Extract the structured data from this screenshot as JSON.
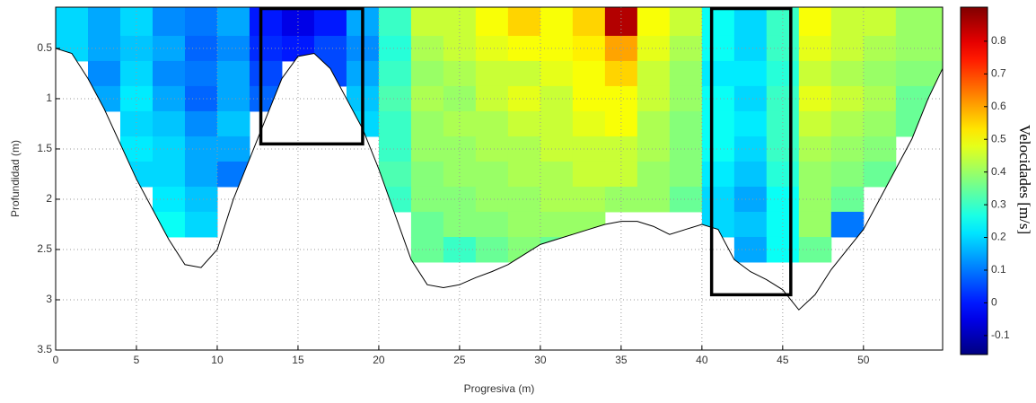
{
  "chart_data": {
    "type": "heatmap",
    "xlabel": "Progresiva (m)",
    "ylabel": "Profundidad (m)",
    "colorbar_label": "Velocidades [m/s]",
    "xlim": [
      0,
      54.9
    ],
    "ylim": [
      0.09,
      3.5
    ],
    "y_reversed": true,
    "xticks": [
      0,
      5,
      10,
      15,
      20,
      25,
      30,
      35,
      40,
      45,
      50
    ],
    "yticks": [
      0.5,
      1,
      1.5,
      2,
      2.5,
      3,
      3.5
    ],
    "grid": true,
    "colormap": "jet",
    "clim": [
      -0.158,
      0.904
    ],
    "cticks": [
      -0.1,
      0,
      0.1,
      0.2,
      0.3,
      0.4,
      0.5,
      0.6,
      0.7,
      0.8
    ],
    "x": [
      1,
      3,
      5,
      7,
      9,
      11,
      13,
      15,
      17,
      19,
      21,
      23,
      25,
      27,
      29,
      31,
      33,
      35,
      37,
      39,
      41,
      43,
      45,
      47,
      49,
      51,
      53
    ],
    "y": [
      0.25,
      0.5,
      0.75,
      1,
      1.25,
      1.5,
      1.75,
      2,
      2.25,
      2.5
    ],
    "z": [
      [
        0.2,
        0.15,
        0.2,
        0.12,
        0.1,
        0.15,
        0.0,
        -0.05,
        0.0,
        0.15,
        0.3,
        0.45,
        0.45,
        0.5,
        0.55,
        0.5,
        0.55,
        0.85,
        0.5,
        0.45,
        0.25,
        0.2,
        0.3,
        0.5,
        0.45,
        0.45,
        0.4
      ],
      [
        0.2,
        0.15,
        0.18,
        0.15,
        0.08,
        0.12,
        0.02,
        0.0,
        0.05,
        0.12,
        0.28,
        0.42,
        0.45,
        0.48,
        0.5,
        0.5,
        0.52,
        0.6,
        0.48,
        0.42,
        0.25,
        0.2,
        0.3,
        0.48,
        0.45,
        0.42,
        0.4
      ],
      [
        null,
        0.12,
        0.2,
        0.12,
        0.1,
        0.15,
        0.05,
        null,
        0.05,
        0.15,
        0.3,
        0.4,
        0.42,
        0.45,
        0.45,
        0.48,
        0.5,
        0.55,
        0.45,
        0.4,
        0.22,
        0.22,
        0.28,
        0.45,
        0.42,
        0.4,
        0.38
      ],
      [
        null,
        0.15,
        0.22,
        0.15,
        0.08,
        0.15,
        0.08,
        null,
        null,
        0.18,
        0.32,
        0.42,
        0.4,
        0.45,
        0.48,
        0.45,
        0.5,
        0.5,
        0.45,
        0.4,
        0.25,
        0.2,
        0.3,
        0.48,
        0.45,
        0.42,
        0.35
      ],
      [
        null,
        null,
        0.2,
        0.18,
        0.12,
        0.18,
        null,
        null,
        null,
        0.2,
        0.3,
        0.4,
        0.42,
        0.42,
        0.45,
        0.45,
        0.48,
        0.5,
        0.42,
        0.38,
        0.25,
        0.22,
        0.3,
        0.45,
        0.42,
        0.4,
        0.35
      ],
      [
        null,
        null,
        0.22,
        0.2,
        0.15,
        0.15,
        null,
        null,
        null,
        null,
        0.3,
        0.4,
        0.4,
        0.42,
        0.42,
        0.45,
        0.45,
        0.45,
        0.42,
        0.38,
        0.25,
        0.2,
        0.3,
        0.42,
        0.4,
        0.38,
        null
      ],
      [
        null,
        null,
        0.2,
        0.2,
        0.15,
        0.1,
        null,
        null,
        null,
        null,
        0.32,
        0.38,
        0.4,
        0.4,
        0.42,
        0.42,
        0.45,
        0.45,
        0.4,
        0.38,
        0.22,
        0.18,
        0.28,
        0.4,
        0.38,
        0.35,
        null
      ],
      [
        null,
        null,
        null,
        0.22,
        0.18,
        null,
        null,
        null,
        null,
        null,
        0.3,
        0.38,
        0.38,
        0.4,
        0.4,
        0.42,
        0.42,
        0.4,
        0.4,
        0.35,
        0.2,
        0.15,
        0.25,
        0.4,
        0.35,
        null,
        null
      ],
      [
        null,
        null,
        null,
        0.25,
        0.2,
        null,
        null,
        null,
        null,
        null,
        null,
        0.35,
        0.38,
        0.38,
        0.4,
        0.4,
        0.4,
        null,
        null,
        null,
        0.2,
        0.18,
        0.25,
        0.4,
        0.1,
        null,
        null
      ],
      [
        null,
        null,
        null,
        null,
        null,
        null,
        null,
        null,
        null,
        null,
        null,
        0.35,
        0.3,
        0.35,
        0.38,
        0.35,
        null,
        null,
        null,
        null,
        null,
        0.15,
        0.25,
        0.35,
        null,
        null,
        null
      ]
    ],
    "bed": {
      "x": [
        0,
        1,
        2,
        3,
        4,
        5,
        6,
        7,
        8,
        9,
        10,
        11,
        12,
        13,
        14,
        15,
        16,
        17,
        18,
        19,
        20,
        21,
        22,
        23,
        24,
        25,
        26,
        27,
        28,
        29,
        30,
        31,
        32,
        33,
        34,
        35,
        36,
        37,
        38,
        39,
        40,
        41,
        42,
        43,
        44,
        45,
        46,
        47,
        48,
        49,
        50,
        51,
        52,
        53,
        54,
        54.9
      ],
      "depth": [
        0.5,
        0.55,
        0.8,
        1.1,
        1.45,
        1.8,
        2.1,
        2.4,
        2.65,
        2.68,
        2.5,
        2.0,
        1.6,
        1.2,
        0.8,
        0.58,
        0.55,
        0.7,
        1.0,
        1.3,
        1.7,
        2.15,
        2.6,
        2.85,
        2.88,
        2.85,
        2.78,
        2.72,
        2.65,
        2.55,
        2.45,
        2.4,
        2.35,
        2.3,
        2.25,
        2.22,
        2.22,
        2.27,
        2.35,
        2.3,
        2.25,
        2.3,
        2.6,
        2.72,
        2.8,
        2.9,
        3.1,
        2.95,
        2.7,
        2.5,
        2.3,
        2.0,
        1.7,
        1.4,
        1.0,
        0.7
      ]
    },
    "boxes": [
      {
        "x": [
          12.7,
          19.0
        ],
        "bottom": 1.45
      },
      {
        "x": [
          40.6,
          45.5
        ],
        "bottom": 2.95
      }
    ]
  }
}
